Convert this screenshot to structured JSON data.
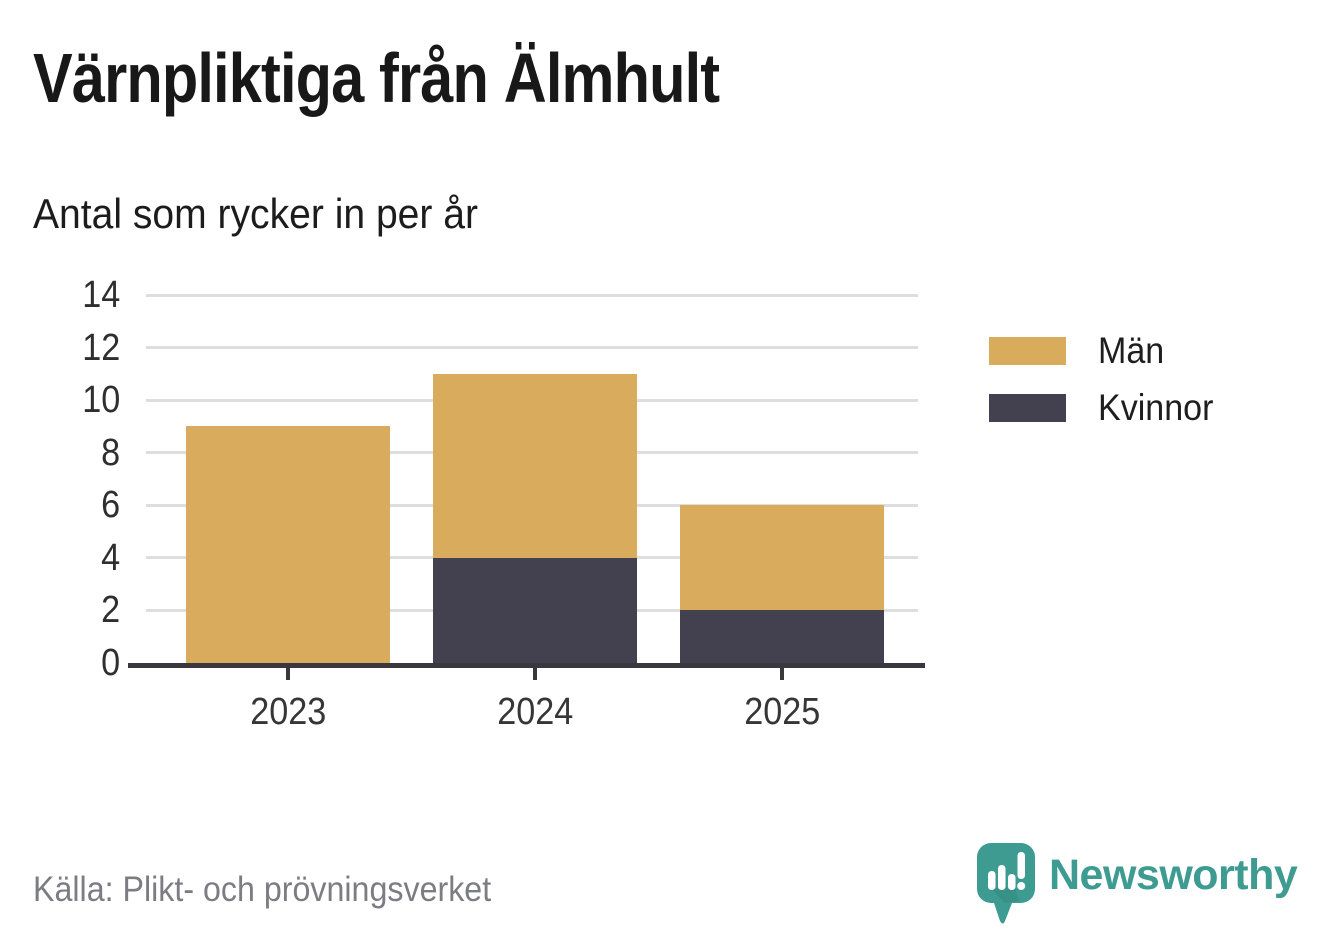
{
  "header": {
    "title": "Värnpliktiga från Älmhult"
  },
  "chart_data": {
    "type": "bar",
    "stacked": true,
    "title": "Värnpliktiga från Älmhult",
    "subtitle": "Antal som rycker in per år",
    "categories": [
      "2023",
      "2024",
      "2025"
    ],
    "series": [
      {
        "name": "Män",
        "color": "#d9ab5c",
        "values": [
          9,
          7,
          4
        ]
      },
      {
        "name": "Kvinnor",
        "color": "#434050",
        "values": [
          0,
          4,
          2
        ]
      }
    ],
    "stack_order": [
      "Kvinnor",
      "Män"
    ],
    "totals": [
      9,
      11,
      6
    ],
    "xlabel": "",
    "ylabel": "",
    "ylim": [
      0,
      14
    ],
    "yticks": [
      0,
      2,
      4,
      6,
      8,
      10,
      12,
      14
    ],
    "grid": true,
    "gridline_color": "#dededf",
    "axis_color": "#3a383e",
    "legend_position": "right"
  },
  "footer": {
    "source": "Källa: Plikt- och prövningsverket",
    "brand": "Newsworthy",
    "brand_color": "#3d9b91"
  }
}
